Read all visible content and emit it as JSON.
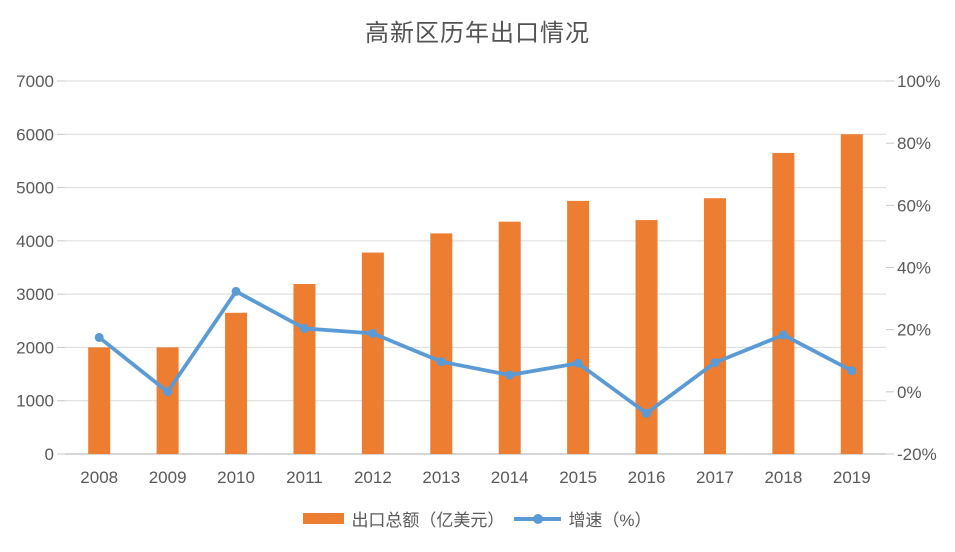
{
  "title": "高新区历年出口情况",
  "legend": [
    {
      "label": "出口总额（亿美元）",
      "color": "#ED7D31",
      "type": "bar"
    },
    {
      "label": "增速（%）",
      "color": "#5B9BD5",
      "type": "line"
    }
  ],
  "chart_data": {
    "type": "bar",
    "title": "高新区历年出口情况",
    "categories": [
      "2008",
      "2009",
      "2010",
      "2011",
      "2012",
      "2013",
      "2014",
      "2015",
      "2016",
      "2017",
      "2018",
      "2019"
    ],
    "series": [
      {
        "name": "出口总额（亿美元）",
        "type": "bar",
        "axis": "left",
        "color": "#ED7D31",
        "values": [
          2000,
          2000,
          2650,
          3190,
          3780,
          4140,
          4360,
          4750,
          4390,
          4800,
          5650,
          6000
        ]
      },
      {
        "name": "增速（%）",
        "type": "line",
        "axis": "right",
        "color": "#5B9BD5",
        "values": [
          17.5,
          0,
          32.3,
          20.4,
          18.8,
          9.7,
          5.4,
          9.2,
          -6.9,
          9.4,
          18.3,
          6.8
        ]
      }
    ],
    "left_axis": {
      "min": 0,
      "max": 7000,
      "tick_step": 1000,
      "ticks": [
        "0",
        "1000",
        "2000",
        "3000",
        "4000",
        "5000",
        "6000",
        "7000"
      ]
    },
    "right_axis": {
      "min": -20,
      "max": 100,
      "tick_step": 20,
      "ticks": [
        "-20%",
        "0%",
        "20%",
        "40%",
        "60%",
        "80%",
        "100%"
      ]
    },
    "grid": true,
    "legend_position": "bottom",
    "colors": {
      "grid": "#D9D9D9",
      "axis_line": "#C9C9C9",
      "text": "#595959"
    }
  }
}
